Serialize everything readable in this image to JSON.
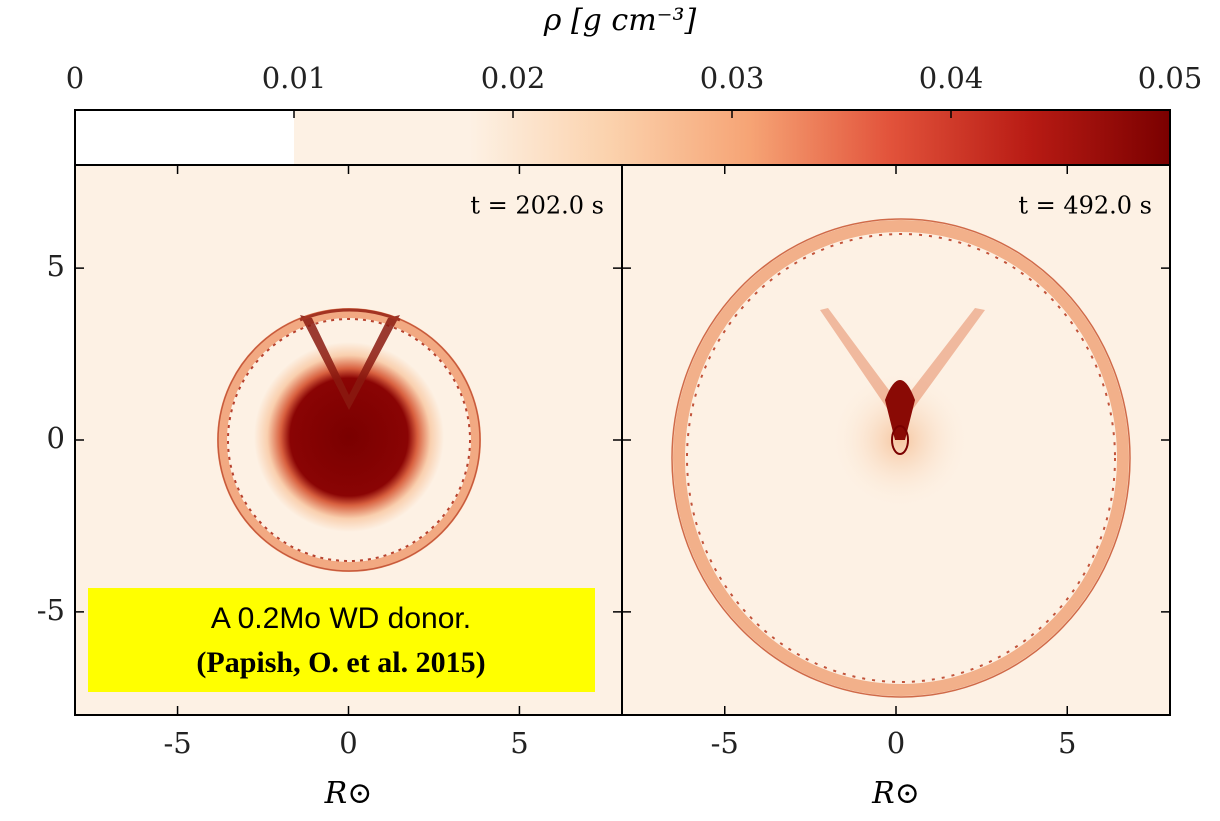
{
  "colorbar": {
    "label": "ρ [g cm⁻³]",
    "lim": [
      0,
      0.05
    ],
    "ticks": [
      0,
      0.01,
      0.02,
      0.03,
      0.04,
      0.05
    ],
    "colormap": [
      "#fdf1e4",
      "#fbd2ad",
      "#f6a475",
      "#e2533b",
      "#b81b14",
      "#7a0000"
    ],
    "colormap_start": 0.01
  },
  "panels": [
    {
      "time_label": "t = 202.0 s",
      "xlim": [
        -8,
        8
      ],
      "ylim": [
        -8,
        8
      ],
      "xticks": [
        -5,
        0,
        5
      ],
      "yticks": [
        -5,
        0,
        5
      ],
      "xlabel": "R⊙"
    },
    {
      "time_label": "t = 492.0 s",
      "xlim": [
        -8,
        8
      ],
      "ylim": [
        -8,
        8
      ],
      "xticks": [
        -5,
        0,
        5
      ],
      "yticks": [
        -5,
        0,
        5
      ],
      "xlabel": "R⊙"
    }
  ],
  "annotation": {
    "line1": "A 0.2Mo WD donor.",
    "line2": "(Papish, O.  et al. 2015)"
  }
}
